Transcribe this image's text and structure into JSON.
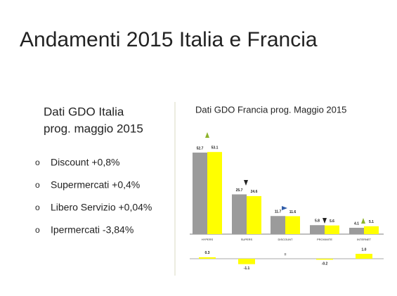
{
  "title": "Andamenti 2015 Italia e Francia",
  "left_panel": {
    "heading": [
      "Dati GDO Italia",
      "prog. maggio 2015"
    ],
    "bullets": [
      "Discount   +0,8%",
      "Supermercati +0,4%",
      "Libero Servizio +0,04%",
      "Ipermercati  -3,84%"
    ]
  },
  "chart_data": {
    "type": "bar",
    "title": "Dati GDO Francia prog. Maggio 2015",
    "categories": [
      "HYPERS",
      "SUPERS",
      "DISCOUNT",
      "PROXIMITE",
      "INTERNET"
    ],
    "series": [
      {
        "color": "#9b9b9b",
        "values": [
          52.7,
          25.7,
          11.7,
          5.8,
          4.1
        ]
      },
      {
        "color": "#ffff00",
        "values": [
          53.1,
          24.6,
          11.6,
          5.6,
          5.1
        ]
      }
    ],
    "difference": {
      "color": "#ffff00",
      "values": [
        0.3,
        -1.1,
        0,
        -0.2,
        1.0
      ],
      "value_labels": [
        "0.3",
        "-1.1",
        "=",
        "-0.2",
        "1.0"
      ]
    }
  }
}
